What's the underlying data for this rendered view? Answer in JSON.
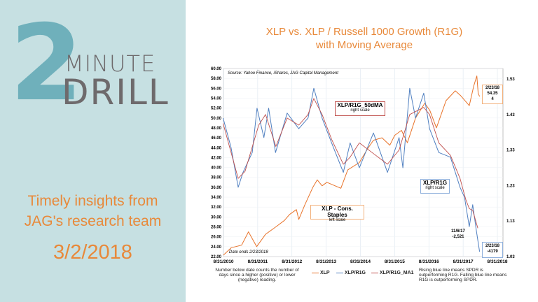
{
  "slide": {
    "big_number": "2",
    "word1": "MINUTE",
    "word2": "DRILL",
    "tagline1": "Timely insights from",
    "tagline2": "JAG's research team",
    "date": "3/2/2018"
  },
  "colors": {
    "panel": "#c6e0e2",
    "accent": "#e8893a",
    "xlp": "#e8732a",
    "ratio": "#4f7fc0",
    "ma": "#c0504d"
  },
  "chart_data": {
    "type": "line",
    "title_line1": "XLP vs. XLP / Russell 1000 Growth (R1G)",
    "title_line2": "with Moving Average",
    "source": "Source: Yahoo Finance, iShares, JAG Capital Management",
    "date_ends": "Date ends 2/23/2018",
    "left_axis": {
      "range": [
        22,
        60
      ],
      "ticks": [
        "22.00",
        "24.00",
        "26.00",
        "28.00",
        "30.00",
        "32.00",
        "34.00",
        "36.00",
        "38.00",
        "40.00",
        "42.00",
        "44.00",
        "46.00",
        "48.00",
        "50.00",
        "52.00",
        "54.00",
        "56.00",
        "58.00",
        "60.00"
      ]
    },
    "right_axis": {
      "range": [
        1.03,
        1.53
      ],
      "ticks": [
        "1.03",
        "1.13",
        "1.23",
        "1.33",
        "1.43",
        "1.53"
      ]
    },
    "x_axis": {
      "range": [
        2010.67,
        2018.67
      ],
      "ticks": [
        "8/31/2010",
        "8/31/2011",
        "8/31/2012",
        "8/31/2013",
        "8/31/2014",
        "8/31/2015",
        "8/31/2016",
        "8/31/2017",
        "8/31/2018"
      ]
    },
    "grid": true,
    "series": [
      {
        "name": "XLP",
        "axis": "left",
        "points": [
          [
            2010.67,
            22.3
          ],
          [
            2010.9,
            23.8
          ],
          [
            2011.2,
            24.3
          ],
          [
            2011.4,
            27
          ],
          [
            2011.64,
            24
          ],
          [
            2011.9,
            26.5
          ],
          [
            2012.2,
            28
          ],
          [
            2012.45,
            29.3
          ],
          [
            2012.6,
            30.5
          ],
          [
            2012.8,
            31.5
          ],
          [
            2012.87,
            29.5
          ],
          [
            2013.05,
            32.5
          ],
          [
            2013.28,
            36
          ],
          [
            2013.41,
            37.5
          ],
          [
            2013.55,
            36.3
          ],
          [
            2013.69,
            37
          ],
          [
            2014.1,
            35.8
          ],
          [
            2014.3,
            39.5
          ],
          [
            2014.64,
            41
          ],
          [
            2014.9,
            44
          ],
          [
            2015.05,
            45.5
          ],
          [
            2015.3,
            46
          ],
          [
            2015.53,
            44.5
          ],
          [
            2015.67,
            46.5
          ],
          [
            2015.87,
            47.5
          ],
          [
            2016.04,
            45
          ],
          [
            2016.28,
            50
          ],
          [
            2016.55,
            53
          ],
          [
            2016.7,
            51.5
          ],
          [
            2016.89,
            48
          ],
          [
            2017.17,
            53.5
          ],
          [
            2017.44,
            55.5
          ],
          [
            2017.6,
            54.5
          ],
          [
            2017.85,
            52.5
          ],
          [
            2017.98,
            56.5
          ],
          [
            2018.07,
            58.5
          ],
          [
            2018.11,
            55
          ],
          [
            2018.15,
            54.35
          ]
        ]
      },
      {
        "name": "XLP/R1G",
        "axis": "right",
        "points": [
          [
            2010.66,
            1.42
          ],
          [
            2010.89,
            1.337
          ],
          [
            2011.1,
            1.225
          ],
          [
            2011.24,
            1.267
          ],
          [
            2011.51,
            1.323
          ],
          [
            2011.65,
            1.448
          ],
          [
            2011.85,
            1.365
          ],
          [
            2011.99,
            1.448
          ],
          [
            2012.19,
            1.323
          ],
          [
            2012.53,
            1.434
          ],
          [
            2012.87,
            1.39
          ],
          [
            2013.14,
            1.42
          ],
          [
            2013.31,
            1.504
          ],
          [
            2013.55,
            1.42
          ],
          [
            2013.83,
            1.35
          ],
          [
            2014.17,
            1.267
          ],
          [
            2014.37,
            1.35
          ],
          [
            2014.64,
            1.28
          ],
          [
            2015.05,
            1.378
          ],
          [
            2015.46,
            1.267
          ],
          [
            2015.8,
            1.365
          ],
          [
            2015.91,
            1.28
          ],
          [
            2016.11,
            1.504
          ],
          [
            2016.28,
            1.42
          ],
          [
            2016.52,
            1.49
          ],
          [
            2016.69,
            1.39
          ],
          [
            2016.96,
            1.323
          ],
          [
            2017.3,
            1.31
          ],
          [
            2017.58,
            1.225
          ],
          [
            2017.71,
            1.197
          ],
          [
            2017.85,
            1.114
          ],
          [
            2017.95,
            1.176
          ],
          [
            2018.05,
            1.107
          ],
          [
            2018.15,
            1.044
          ]
        ]
      },
      {
        "name": "XLP/R1G_MA1",
        "axis": "right",
        "points": [
          [
            2010.66,
            1.405
          ],
          [
            2011.1,
            1.25
          ],
          [
            2011.3,
            1.27
          ],
          [
            2011.7,
            1.4
          ],
          [
            2011.9,
            1.43
          ],
          [
            2012.2,
            1.34
          ],
          [
            2012.53,
            1.42
          ],
          [
            2012.87,
            1.4
          ],
          [
            2013.14,
            1.43
          ],
          [
            2013.31,
            1.475
          ],
          [
            2013.55,
            1.43
          ],
          [
            2013.83,
            1.36
          ],
          [
            2014.17,
            1.29
          ],
          [
            2014.37,
            1.31
          ],
          [
            2014.64,
            1.35
          ],
          [
            2015.05,
            1.32
          ],
          [
            2015.46,
            1.29
          ],
          [
            2015.8,
            1.33
          ],
          [
            2016.11,
            1.43
          ],
          [
            2016.52,
            1.45
          ],
          [
            2016.69,
            1.43
          ],
          [
            2016.96,
            1.35
          ],
          [
            2017.3,
            1.315
          ],
          [
            2017.58,
            1.25
          ],
          [
            2017.75,
            1.19
          ],
          [
            2017.85,
            1.165
          ],
          [
            2017.95,
            1.16
          ],
          [
            2018.1,
            1.11
          ]
        ]
      }
    ],
    "annotations": {
      "ma_label": "XLP/R1G_50dMA",
      "ma_sub": "right scale",
      "ratio_label": "XLP/R1G",
      "ratio_sub": "right scale",
      "xlp_label": "XLP - Cons. Staples",
      "xlp_sub": "left scale",
      "latest_xlp": [
        "2/23/18",
        "54.35",
        "4"
      ],
      "low_point": [
        "11/6/17",
        "-2,521"
      ],
      "latest_ratio": [
        "2/23/18",
        "-4179"
      ]
    },
    "legend": [
      "XLP",
      "XLP/R1G",
      "XLP/R1G_MA1"
    ],
    "legend_placement": "bottom",
    "note_left": "Number below date counts the number of days since a higher (positive) or lower (negative) reading.",
    "note_right": "Rising blue line means SPDR is outperforming R1G. Falling blue line means R1G is outperforming SPDR."
  }
}
